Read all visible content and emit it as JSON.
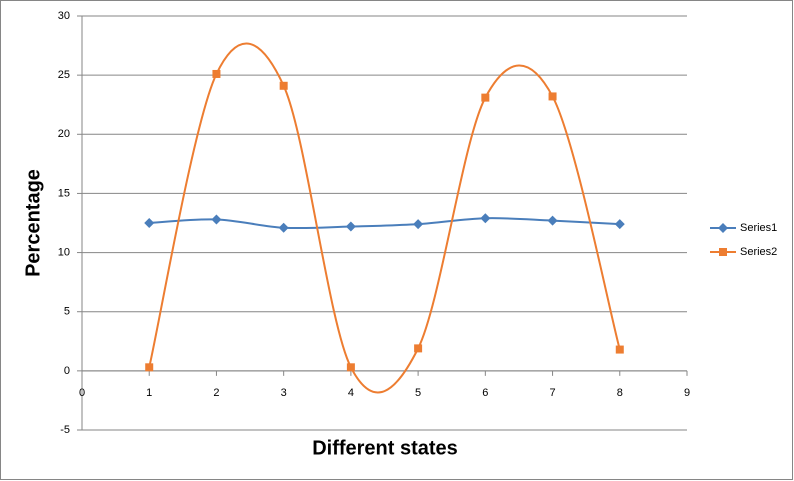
{
  "chart_data": {
    "type": "scatter",
    "smooth": true,
    "x_label": "Different states",
    "y_label": "Percentage",
    "xlim": [
      0,
      9
    ],
    "xticks": [
      0,
      1,
      2,
      3,
      4,
      5,
      6,
      7,
      8,
      9
    ],
    "ylim": [
      -5,
      30
    ],
    "yticks": [
      -5,
      0,
      5,
      10,
      15,
      20,
      25,
      30
    ],
    "grid": true,
    "legend": "right",
    "series": [
      {
        "name": "Series1",
        "color": "#4A7EBB",
        "marker": "diamond",
        "x": [
          1,
          2,
          3,
          4,
          5,
          6,
          7,
          8
        ],
        "values": [
          12.5,
          12.8,
          12.1,
          12.2,
          12.4,
          12.9,
          12.7,
          12.4
        ]
      },
      {
        "name": "Series2",
        "color": "#ED7D31",
        "marker": "square",
        "x": [
          1,
          2,
          3,
          4,
          5,
          6,
          7,
          8
        ],
        "values": [
          0.3,
          25.1,
          24.1,
          0.3,
          1.9,
          23.1,
          23.2,
          1.8
        ]
      }
    ]
  }
}
